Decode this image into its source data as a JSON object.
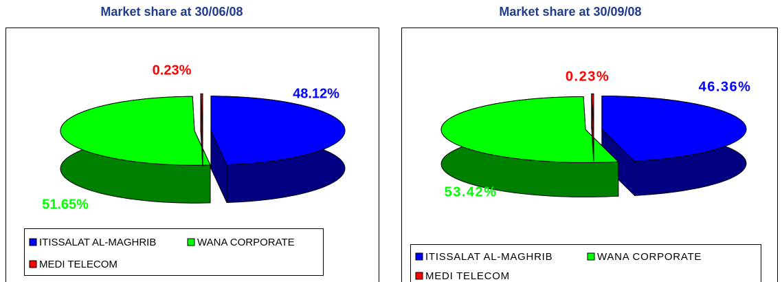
{
  "chart_data": [
    {
      "type": "pie",
      "title": "Market share at 30/06/08",
      "categories": [
        "ITISSALAT AL-MAGHRIB",
        "WANA CORPORATE",
        "MEDI TELECOM"
      ],
      "values": [
        48.12,
        51.65,
        0.23
      ],
      "value_labels": [
        "48.12%",
        "51.65%",
        "0.23%"
      ],
      "colors": [
        "#0000ff",
        "#00ff00",
        "#ff0000"
      ]
    },
    {
      "type": "pie",
      "title": "Market share at 30/09/08",
      "categories": [
        "ITISSALAT AL-MAGHRIB",
        "WANA CORPORATE",
        "MEDI TELECOM"
      ],
      "values": [
        46.36,
        53.42,
        0.23
      ],
      "value_labels": [
        "46.36%",
        "53.42%",
        "0.23%"
      ],
      "colors": [
        "#0000ff",
        "#00ff00",
        "#ff0000"
      ]
    }
  ]
}
